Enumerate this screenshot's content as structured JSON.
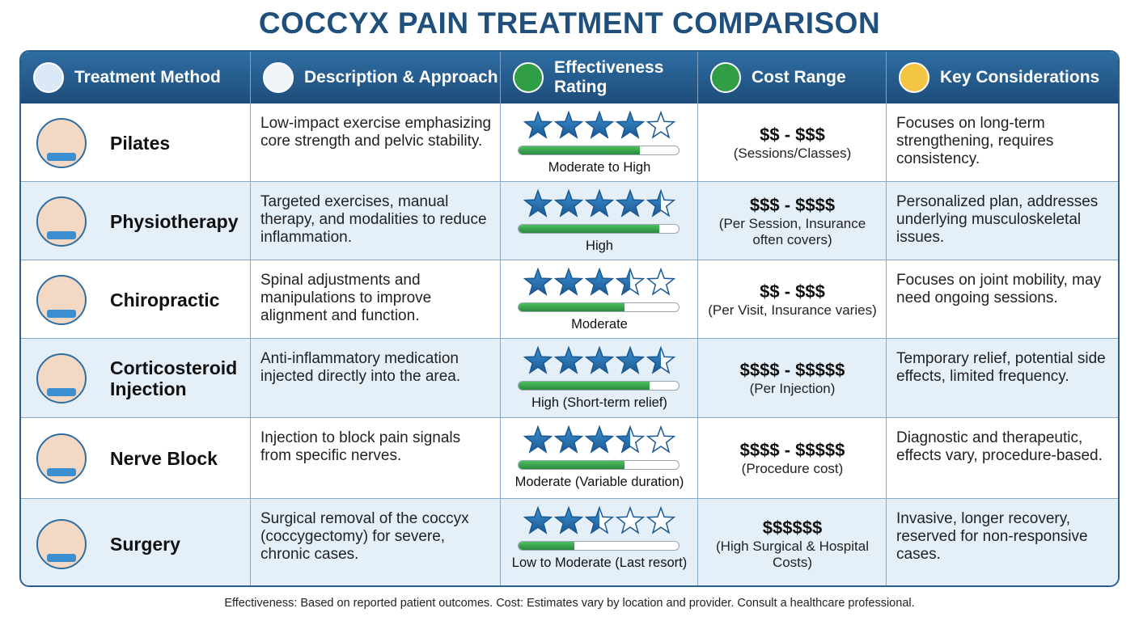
{
  "title": "COCCYX PAIN TREATMENT COMPARISON",
  "headers": [
    "Treatment Method",
    "Description & Approach",
    "Effectiveness Rating",
    "Cost Range",
    "Key Considerations"
  ],
  "rows": [
    {
      "method": "Pilates",
      "description": "Low-impact exercise emphasizing core strength and pelvic stability.",
      "stars": 4,
      "bar": 0.76,
      "rating": "Moderate to High",
      "cost": "$$ - $$$",
      "cost_note": "(Sessions/Classes)",
      "considerations": "Focuses on long-term strengthening, requires consistency."
    },
    {
      "method": "Physiotherapy",
      "description": "Targeted exercises, manual therapy, and modalities to reduce inflammation.",
      "stars": 4.5,
      "bar": 0.88,
      "rating": "High",
      "cost": "$$$ - $$$$",
      "cost_note": "(Per Session, Insurance often covers)",
      "considerations": "Personalized plan, addresses underlying musculoskeletal issues."
    },
    {
      "method": "Chiropractic",
      "description": "Spinal adjustments and manipulations to improve alignment and function.",
      "stars": 3.5,
      "bar": 0.66,
      "rating": "Moderate",
      "cost": "$$ - $$$",
      "cost_note": "(Per Visit, Insurance varies)",
      "considerations": "Focuses on joint mobility, may need ongoing sessions."
    },
    {
      "method": "Corticosteroid Injection",
      "description": "Anti-inflammatory medication injected directly into the area.",
      "stars": 4.5,
      "bar": 0.82,
      "rating": "High (Short-term relief)",
      "cost": "$$$$ - $$$$$",
      "cost_note": "(Per Injection)",
      "considerations": "Temporary relief, potential side effects, limited frequency."
    },
    {
      "method": "Nerve Block",
      "description": "Injection to block pain signals from specific nerves.",
      "stars": 3.5,
      "bar": 0.66,
      "rating": "Moderate (Variable duration)",
      "cost": "$$$$ - $$$$$",
      "cost_note": "(Procedure cost)",
      "considerations": "Diagnostic and therapeutic, effects vary, procedure-based."
    },
    {
      "method": "Surgery",
      "description": "Surgical removal of the coccyx (coccygectomy) for severe, chronic cases.",
      "stars": 2.5,
      "bar": 0.35,
      "rating": "Low to Moderate (Last resort)",
      "cost": "$$$$$$",
      "cost_note": "(High Surgical & Hospital Costs)",
      "considerations": "Invasive, longer recovery, reserved for non-responsive cases."
    }
  ],
  "footer": "Effectiveness: Based on reported patient outcomes. Cost: Estimates vary by location and provider. Consult a healthcare professional."
}
